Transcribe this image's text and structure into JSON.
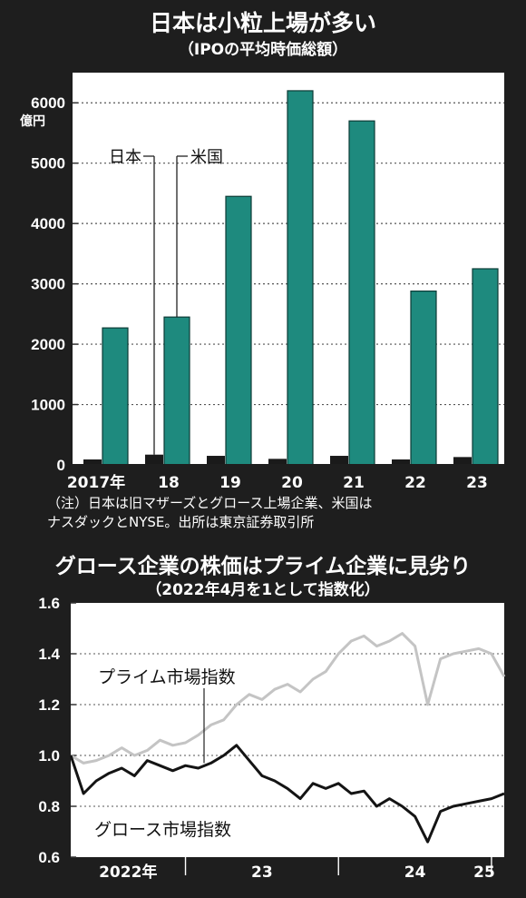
{
  "chart_data": [
    {
      "type": "bar",
      "title": "日本は小粒上場が多い",
      "subtitle": "（IPOの平均時価総額）",
      "unit_label": "億円",
      "categories": [
        "2017年",
        "18",
        "19",
        "20",
        "21",
        "22",
        "23"
      ],
      "series": [
        {
          "name": "日本",
          "color": "#1a1a1a",
          "values": [
            90,
            170,
            150,
            100,
            150,
            90,
            130
          ]
        },
        {
          "name": "米国",
          "color": "#1e8a7e",
          "values": [
            2270,
            2450,
            4450,
            6200,
            5700,
            2880,
            3250
          ]
        }
      ],
      "ylim": [
        0,
        6500
      ],
      "yticks": [
        0,
        1000,
        2000,
        3000,
        4000,
        5000,
        6000
      ],
      "ytick_labels": [
        "0",
        "1000",
        "2000",
        "3000",
        "4000",
        "5000",
        "6000"
      ],
      "note_lines": [
        "（注）日本は旧マザーズとグロース上場企業、米国は",
        "ナスダックとNYSE。出所は東京証券取引所"
      ]
    },
    {
      "type": "line",
      "title": "グロース企業の株価はプライム企業に見劣り",
      "subtitle": "（2022年4月を1として指数化）",
      "ylim": [
        0.6,
        1.6
      ],
      "yticks": [
        0.6,
        0.8,
        1.0,
        1.2,
        1.4,
        1.6
      ],
      "ytick_labels": [
        "0.6",
        "0.8",
        "1.0",
        "1.2",
        "1.4",
        "1.6"
      ],
      "xlim": [
        "2022-04",
        "2025-02"
      ],
      "x_period_labels": [
        "2022年",
        "23",
        "24",
        "25"
      ],
      "series": [
        {
          "name": "プライム市場指数",
          "color": "#c4c4c4",
          "x": [
            "2022-04",
            "2022-05",
            "2022-06",
            "2022-07",
            "2022-08",
            "2022-09",
            "2022-10",
            "2022-11",
            "2022-12",
            "2023-01",
            "2023-02",
            "2023-03",
            "2023-04",
            "2023-05",
            "2023-06",
            "2023-07",
            "2023-08",
            "2023-09",
            "2023-10",
            "2023-11",
            "2023-12",
            "2024-01",
            "2024-02",
            "2024-03",
            "2024-04",
            "2024-05",
            "2024-06",
            "2024-07",
            "2024-08",
            "2024-09",
            "2024-10",
            "2024-11",
            "2024-12",
            "2025-01",
            "2025-02"
          ],
          "values": [
            1.0,
            0.97,
            0.98,
            1.0,
            1.03,
            1.0,
            1.02,
            1.06,
            1.04,
            1.05,
            1.08,
            1.12,
            1.14,
            1.2,
            1.24,
            1.22,
            1.26,
            1.28,
            1.25,
            1.3,
            1.33,
            1.4,
            1.45,
            1.47,
            1.43,
            1.45,
            1.48,
            1.43,
            1.2,
            1.38,
            1.4,
            1.41,
            1.42,
            1.4,
            1.31
          ]
        },
        {
          "name": "グロース市場指数",
          "color": "#141414",
          "x": [
            "2022-04",
            "2022-05",
            "2022-06",
            "2022-07",
            "2022-08",
            "2022-09",
            "2022-10",
            "2022-11",
            "2022-12",
            "2023-01",
            "2023-02",
            "2023-03",
            "2023-04",
            "2023-05",
            "2023-06",
            "2023-07",
            "2023-08",
            "2023-09",
            "2023-10",
            "2023-11",
            "2023-12",
            "2024-01",
            "2024-02",
            "2024-03",
            "2024-04",
            "2024-05",
            "2024-06",
            "2024-07",
            "2024-08",
            "2024-09",
            "2024-10",
            "2024-11",
            "2024-12",
            "2025-01",
            "2025-02"
          ],
          "values": [
            1.0,
            0.85,
            0.9,
            0.93,
            0.95,
            0.92,
            0.98,
            0.96,
            0.94,
            0.96,
            0.95,
            0.97,
            1.0,
            1.04,
            0.98,
            0.92,
            0.9,
            0.87,
            0.83,
            0.89,
            0.87,
            0.89,
            0.85,
            0.86,
            0.8,
            0.83,
            0.8,
            0.76,
            0.66,
            0.78,
            0.8,
            0.81,
            0.82,
            0.83,
            0.85
          ]
        }
      ]
    }
  ]
}
